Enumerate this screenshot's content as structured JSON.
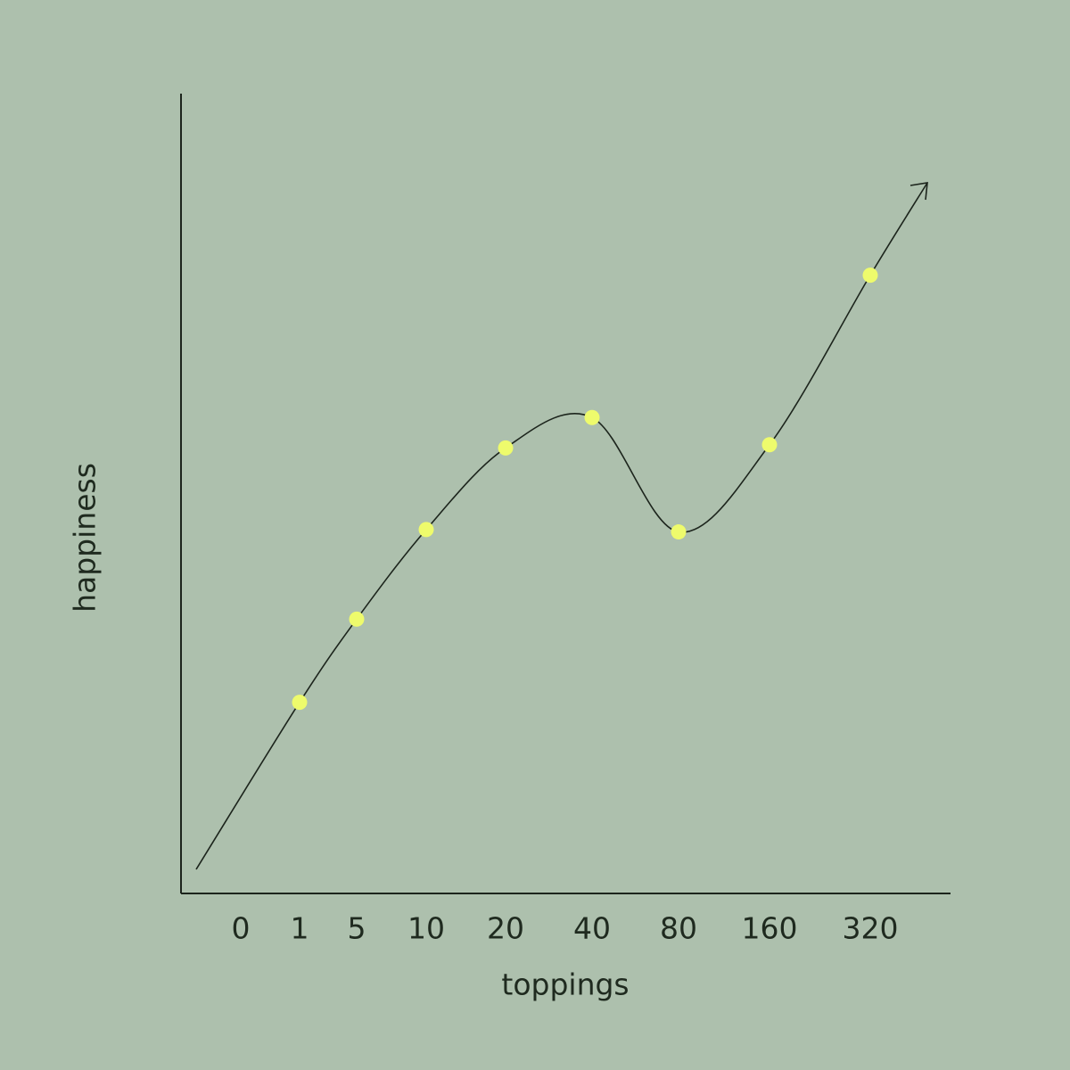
{
  "chart_data": {
    "type": "line",
    "x_label": "toppings",
    "y_label": "happiness",
    "categories": [
      "0",
      "1",
      "5",
      "10",
      "20",
      "40",
      "80",
      "160",
      "320"
    ],
    "values": [
      null,
      23.9,
      34.3,
      45.5,
      55.7,
      59.5,
      45.2,
      56.1,
      77.3
    ],
    "color": "#1c241c",
    "marker_color": "#eefb6c",
    "ylim": [
      0,
      100
    ]
  }
}
